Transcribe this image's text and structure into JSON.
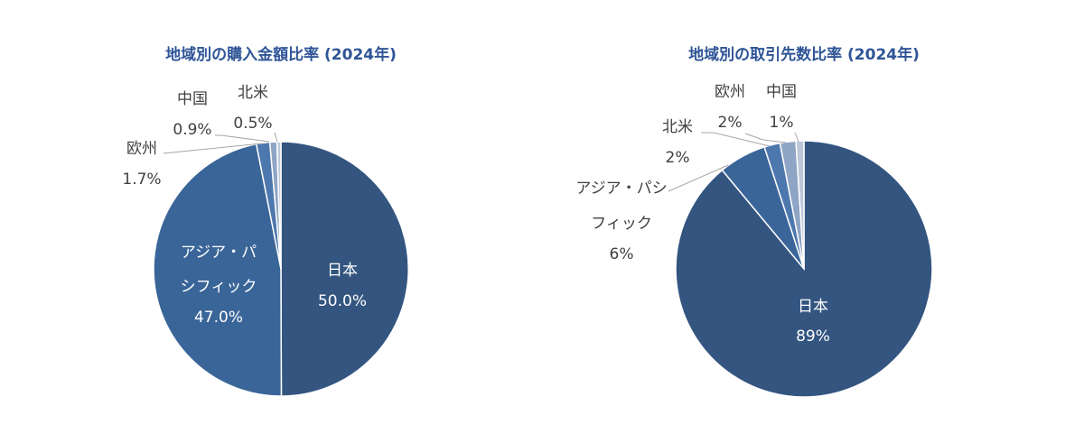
{
  "chart_data": [
    {
      "type": "pie",
      "title": "地域別の購入金額比率 (2024年)",
      "slices": [
        {
          "name": "日本",
          "value": 50.0,
          "value_label": "50.0%",
          "color": "#335580"
        },
        {
          "name": "アジア・パシフィック",
          "name_lines": [
            "アジア・パ",
            "シフィック"
          ],
          "value": 47.0,
          "value_label": "47.0%",
          "color": "#3a6598"
        },
        {
          "name": "欧州",
          "value": 1.7,
          "value_label": "1.7%",
          "color": "#4d78ad"
        },
        {
          "name": "中国",
          "value": 0.9,
          "value_label": "0.9%",
          "color": "#8fa5c5"
        },
        {
          "name": "北米",
          "value": 0.5,
          "value_label": "0.5%",
          "color": "#bcc8da"
        }
      ]
    },
    {
      "type": "pie",
      "title": "地域別の取引先数比率 (2024年)",
      "slices": [
        {
          "name": "日本",
          "value": 89,
          "value_label": "89%",
          "color": "#335580"
        },
        {
          "name": "アジア・パシフィック",
          "name_lines": [
            "アジア・パシ",
            "フィック"
          ],
          "value": 6,
          "value_label": "6%",
          "color": "#3a6598"
        },
        {
          "name": "北米",
          "value": 2,
          "value_label": "2%",
          "color": "#4d78ad"
        },
        {
          "name": "欧州",
          "value": 2,
          "value_label": "2%",
          "color": "#8fa5c5"
        },
        {
          "name": "中国",
          "value": 1,
          "value_label": "1%",
          "color": "#bcc8da"
        }
      ]
    }
  ]
}
